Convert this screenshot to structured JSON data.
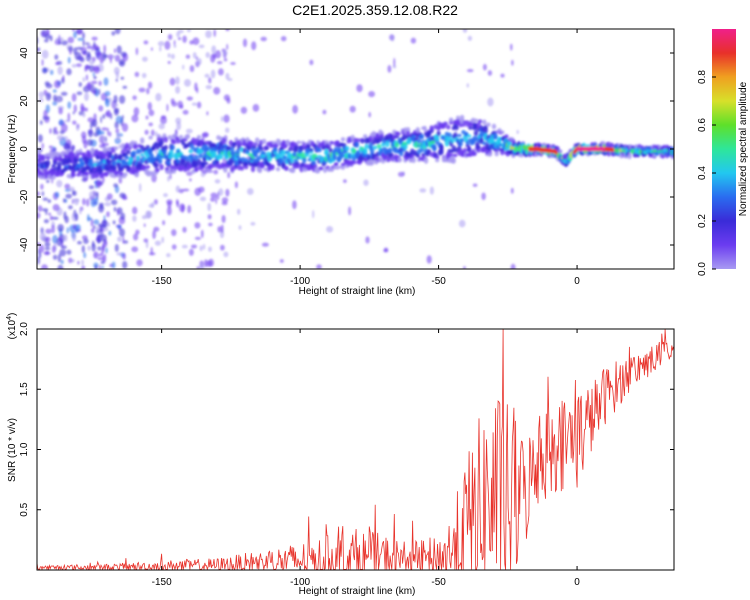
{
  "title": "C2E1.2025.359.12.08.R22",
  "colors": {
    "line": "#e8332b",
    "axis": "#000000",
    "colormap": [
      "#a89af2",
      "#6b3cf0",
      "#3a2bd8",
      "#2a6cf0",
      "#22c8f0",
      "#2ee69a",
      "#5ee02a",
      "#d8e02a",
      "#f0a020",
      "#e8302a",
      "#f0208a"
    ]
  },
  "chart_data": [
    {
      "type": "heatmap",
      "title": "C2E1.2025.359.12.08.R22",
      "xlabel": "Height of straight line (km)",
      "ylabel": "Frequency (Hz)",
      "xlim": [
        -195,
        35
      ],
      "ylim": [
        -50,
        50
      ],
      "xticks": [
        -150,
        -100,
        -50,
        0
      ],
      "xtick_labels": [
        "-150",
        "-100",
        "-50",
        "0"
      ],
      "yticks": [
        -40,
        -20,
        0,
        20,
        40
      ],
      "ytick_labels": [
        "-40",
        "-20",
        "0",
        "20",
        "40"
      ],
      "colorbar": {
        "label": "Normalized spectral amplitude",
        "range": [
          0,
          1
        ],
        "ticks": [
          0.0,
          0.2,
          0.4,
          0.6,
          0.8
        ],
        "tick_labels": [
          "0.0",
          "0.2",
          "0.4",
          "0.6",
          "0.8"
        ]
      },
      "ridge": {
        "x": [
          -190,
          -170,
          -150,
          -130,
          -110,
          -90,
          -70,
          -55,
          -45,
          -35,
          -28,
          -22,
          -15,
          -8,
          -4,
          0,
          10,
          20,
          33
        ],
        "center": [
          -7,
          -6,
          -2,
          -2,
          -3,
          -3,
          1,
          2,
          4,
          5,
          3,
          0,
          0,
          -1,
          -5,
          0,
          0,
          -1,
          -1
        ],
        "width": [
          5,
          6,
          8,
          7,
          6,
          6,
          6,
          7,
          9,
          8,
          5,
          3,
          2,
          2,
          2,
          2,
          2,
          2,
          2
        ],
        "peak": [
          0.3,
          0.4,
          0.45,
          0.5,
          0.5,
          0.55,
          0.5,
          0.55,
          0.45,
          0.4,
          0.5,
          0.75,
          0.9,
          0.9,
          0.6,
          0.95,
          0.95,
          0.6,
          0.6
        ]
      },
      "grid": false
    },
    {
      "type": "line",
      "xlabel": "Height of straight line (km)",
      "ylabel": "SNR (10 * v/v)",
      "y_multiplier": "(x10^4)",
      "y_multiplier_base": "(x10",
      "y_multiplier_exp": "4",
      "y_multiplier_close": ")",
      "xlim": [
        -195,
        35
      ],
      "ylim": [
        0,
        2.0
      ],
      "xticks": [
        -150,
        -100,
        -50,
        0
      ],
      "xtick_labels": [
        "-150",
        "-100",
        "-50",
        "0"
      ],
      "yticks": [
        0.5,
        1.0,
        1.5,
        2.0
      ],
      "ytick_labels": [
        "0.5",
        "1.0",
        "1.5",
        "2.0"
      ],
      "envelope": {
        "x": [
          -195,
          -170,
          -150,
          -130,
          -115,
          -100,
          -90,
          -80,
          -70,
          -60,
          -50,
          -45,
          -40,
          -35,
          -30,
          -25,
          -20,
          -15,
          -10,
          -5,
          0,
          5,
          10,
          20,
          35
        ],
        "base": [
          0.02,
          0.02,
          0.03,
          0.04,
          0.06,
          0.08,
          0.09,
          0.1,
          0.1,
          0.08,
          0.09,
          0.15,
          0.35,
          0.5,
          0.6,
          0.55,
          0.6,
          0.85,
          1.0,
          1.05,
          1.1,
          1.25,
          1.45,
          1.65,
          1.85
        ],
        "amp": [
          0.02,
          0.03,
          0.05,
          0.06,
          0.1,
          0.15,
          0.2,
          0.25,
          0.2,
          0.15,
          0.2,
          0.35,
          0.6,
          0.8,
          0.9,
          0.85,
          0.55,
          0.35,
          0.4,
          0.4,
          0.45,
          0.3,
          0.25,
          0.15,
          0.1
        ]
      },
      "grid": false
    }
  ]
}
